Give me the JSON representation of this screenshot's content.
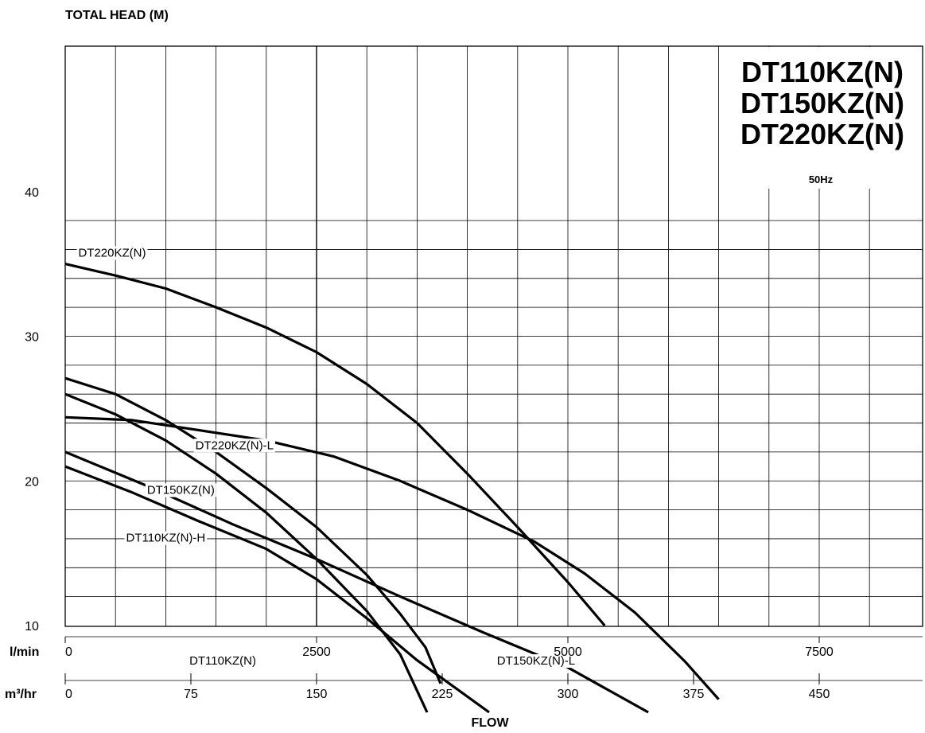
{
  "chart_data": {
    "type": "line",
    "title": "DT110KZ(N)\nDT150KZ(N)\nDT220KZ(N)",
    "title_lines": [
      "DT110KZ(N)",
      "DT150KZ(N)",
      "DT220KZ(N)"
    ],
    "subtitle": "50Hz",
    "ylabel": "TOTAL HEAD (M)",
    "xlabel": "FLOW",
    "ylim": [
      0,
      40
    ],
    "y_ticks": [
      10,
      20,
      30,
      40
    ],
    "x_axes": [
      {
        "unit": "l/min",
        "ticks": [
          0,
          2500,
          5000,
          7500
        ]
      },
      {
        "unit": "m³/hr",
        "ticks": [
          0,
          75,
          150,
          225,
          300,
          375,
          450
        ]
      }
    ],
    "xlim_m3hr": [
      0,
      510
    ],
    "grid": true,
    "series": [
      {
        "name": "DT220KZ(N)",
        "label_at": [
          28,
          35.5
        ],
        "points": [
          [
            0,
            35
          ],
          [
            30,
            34.2
          ],
          [
            60,
            33.3
          ],
          [
            90,
            32
          ],
          [
            120,
            30.6
          ],
          [
            150,
            28.9
          ],
          [
            180,
            26.7
          ],
          [
            210,
            24
          ],
          [
            240,
            20.5
          ],
          [
            270,
            16.8
          ],
          [
            300,
            13
          ],
          [
            322,
            10
          ]
        ]
      },
      {
        "name": "DT220KZ(N)-L",
        "label_at": [
          101,
          22.2
        ],
        "points": [
          [
            0,
            24.4
          ],
          [
            40,
            24.2
          ],
          [
            80,
            23.5
          ],
          [
            120,
            22.8
          ],
          [
            160,
            21.7
          ],
          [
            200,
            20
          ],
          [
            240,
            18
          ],
          [
            280,
            15.8
          ],
          [
            310,
            13.6
          ],
          [
            340,
            10.9
          ],
          [
            370,
            7.5
          ],
          [
            390,
            4.9
          ]
        ]
      },
      {
        "name": "DT150KZ(N)",
        "label_at": [
          69,
          19.1
        ],
        "points": [
          [
            0,
            26
          ],
          [
            30,
            24.6
          ],
          [
            60,
            22.8
          ],
          [
            90,
            20.5
          ],
          [
            120,
            17.8
          ],
          [
            150,
            14.6
          ],
          [
            180,
            11
          ],
          [
            200,
            8
          ],
          [
            216,
            4
          ]
        ]
      },
      {
        "name": "DT110KZ(N)-H",
        "label_at": [
          60,
          15.8
        ],
        "points": [
          [
            0,
            27.1
          ],
          [
            30,
            26
          ],
          [
            60,
            24.2
          ],
          [
            90,
            22
          ],
          [
            120,
            19.5
          ],
          [
            150,
            16.8
          ],
          [
            180,
            13.5
          ],
          [
            200,
            10.8
          ],
          [
            215,
            8.5
          ],
          [
            224,
            6
          ]
        ]
      },
      {
        "name": "DT150KZ(N)-L",
        "label_at": [
          281,
          7.3
        ],
        "points": [
          [
            0,
            22
          ],
          [
            50,
            19.6
          ],
          [
            100,
            17
          ],
          [
            150,
            14.6
          ],
          [
            200,
            12
          ],
          [
            250,
            9.5
          ],
          [
            300,
            7.1
          ],
          [
            348,
            4
          ]
        ]
      },
      {
        "name": "DT110KZ(N)",
        "label_at": [
          94,
          7.3
        ],
        "points": [
          [
            0,
            21
          ],
          [
            40,
            19.2
          ],
          [
            80,
            17.2
          ],
          [
            120,
            15.3
          ],
          [
            150,
            13.2
          ],
          [
            180,
            10.5
          ],
          [
            210,
            7.6
          ],
          [
            253,
            4
          ]
        ]
      }
    ]
  }
}
